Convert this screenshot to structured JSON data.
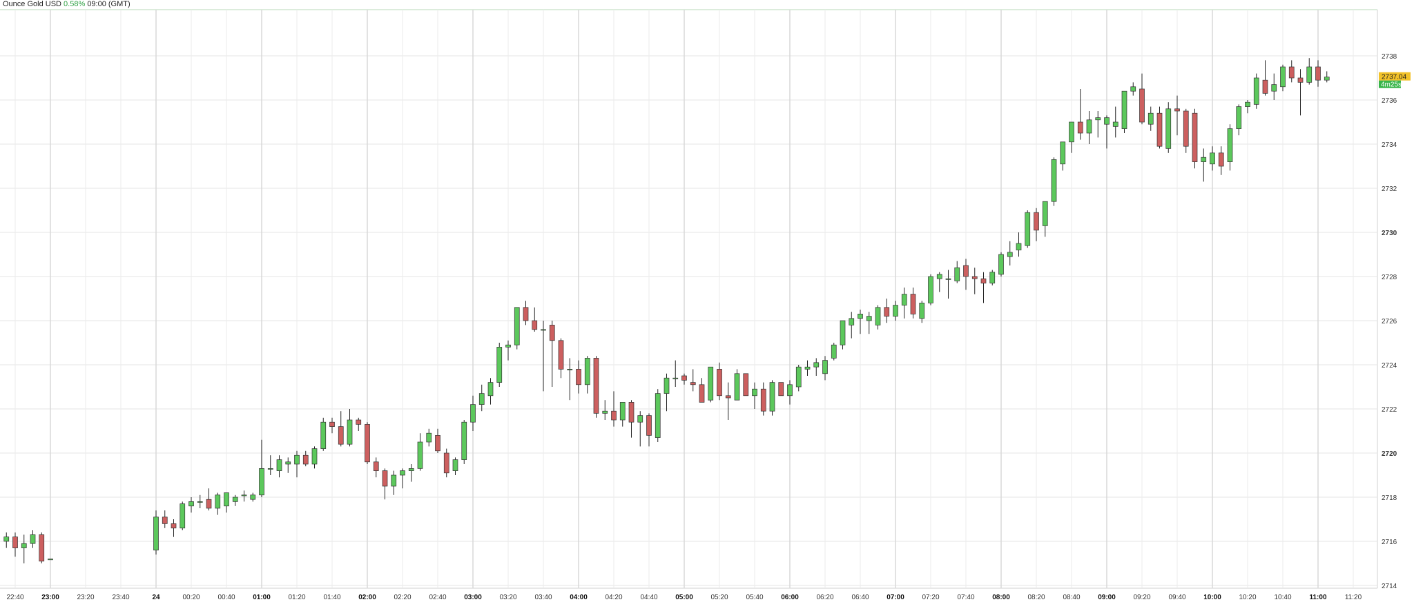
{
  "header": {
    "symbol": "Ounce Gold USD",
    "change": "0.58%",
    "timeframe": "09:00 (GMT)"
  },
  "price_label": {
    "value": "2737.04",
    "countdown": "4m25s"
  },
  "colors": {
    "up": "#5cc85c",
    "down": "#cc5f5f",
    "wick": "#222222",
    "grid": "#e6e6e6",
    "tag": "#f2c229",
    "timer": "#39b54a"
  },
  "chart_data": {
    "type": "candlestick",
    "ylim": [
      2713.5,
      2739.8
    ],
    "y_ticks": [
      "2714",
      "2716",
      "2718",
      "2720",
      "2722",
      "2724",
      "2726",
      "2728",
      "2730",
      "2732",
      "2734",
      "2736",
      "2738"
    ],
    "y_bold_ticks": [
      "2720",
      "2730"
    ],
    "x_labels": [
      "22:40",
      "23:00",
      "23:20",
      "23:40",
      "24",
      "00:20",
      "00:40",
      "01:00",
      "01:20",
      "01:40",
      "02:00",
      "02:20",
      "02:40",
      "03:00",
      "03:20",
      "03:40",
      "04:00",
      "04:20",
      "04:40",
      "05:00",
      "05:20",
      "05:40",
      "06:00",
      "06:20",
      "06:40",
      "07:00",
      "07:20",
      "07:40",
      "08:00",
      "08:20",
      "08:40",
      "09:00",
      "09:20",
      "09:40",
      "10:00",
      "10:20",
      "10:40",
      "11:00",
      "11:20"
    ],
    "x_bold_labels": [
      "23:00",
      "24",
      "01:00",
      "02:00",
      "03:00",
      "04:00",
      "05:00",
      "06:00",
      "07:00",
      "08:00",
      "09:00",
      "10:00",
      "11:00"
    ],
    "candles": [
      {
        "t": "22:35",
        "o": 2716.0,
        "h": 2716.4,
        "l": 2715.7,
        "c": 2716.2
      },
      {
        "t": "22:40",
        "o": 2716.2,
        "h": 2716.4,
        "l": 2715.3,
        "c": 2715.7
      },
      {
        "t": "22:45",
        "o": 2715.7,
        "h": 2716.3,
        "l": 2715.0,
        "c": 2715.9
      },
      {
        "t": "22:50",
        "o": 2715.9,
        "h": 2716.5,
        "l": 2715.7,
        "c": 2716.3
      },
      {
        "t": "22:55",
        "o": 2716.3,
        "h": 2716.4,
        "l": 2715.0,
        "c": 2715.1
      },
      {
        "t": "23:00",
        "o": 2715.2,
        "h": 2715.2,
        "l": 2715.2,
        "c": 2715.2
      },
      {
        "t": "00:00",
        "o": 2715.6,
        "h": 2717.4,
        "l": 2715.4,
        "c": 2717.1
      },
      {
        "t": "00:05",
        "o": 2717.1,
        "h": 2717.4,
        "l": 2716.6,
        "c": 2716.8
      },
      {
        "t": "00:10",
        "o": 2716.8,
        "h": 2717.0,
        "l": 2716.2,
        "c": 2716.6
      },
      {
        "t": "00:15",
        "o": 2716.6,
        "h": 2717.8,
        "l": 2716.5,
        "c": 2717.7
      },
      {
        "t": "00:20",
        "o": 2717.6,
        "h": 2718.0,
        "l": 2717.3,
        "c": 2717.8
      },
      {
        "t": "00:25",
        "o": 2717.8,
        "h": 2718.1,
        "l": 2717.5,
        "c": 2717.8
      },
      {
        "t": "00:30",
        "o": 2717.9,
        "h": 2718.4,
        "l": 2717.4,
        "c": 2717.5
      },
      {
        "t": "00:35",
        "o": 2717.5,
        "h": 2718.2,
        "l": 2717.2,
        "c": 2718.1
      },
      {
        "t": "00:40",
        "o": 2717.6,
        "h": 2718.2,
        "l": 2717.3,
        "c": 2718.2
      },
      {
        "t": "00:45",
        "o": 2717.8,
        "h": 2718.1,
        "l": 2717.6,
        "c": 2718.0
      },
      {
        "t": "00:50",
        "o": 2718.1,
        "h": 2718.3,
        "l": 2717.8,
        "c": 2718.1
      },
      {
        "t": "00:55",
        "o": 2717.9,
        "h": 2718.2,
        "l": 2717.8,
        "c": 2718.1
      },
      {
        "t": "01:00",
        "o": 2718.1,
        "h": 2720.6,
        "l": 2718.0,
        "c": 2719.3
      },
      {
        "t": "01:05",
        "o": 2719.3,
        "h": 2719.9,
        "l": 2719.0,
        "c": 2719.3
      },
      {
        "t": "01:10",
        "o": 2719.2,
        "h": 2719.9,
        "l": 2718.9,
        "c": 2719.7
      },
      {
        "t": "01:15",
        "o": 2719.5,
        "h": 2719.8,
        "l": 2719.1,
        "c": 2719.6
      },
      {
        "t": "01:20",
        "o": 2719.5,
        "h": 2720.1,
        "l": 2718.9,
        "c": 2719.9
      },
      {
        "t": "01:25",
        "o": 2719.9,
        "h": 2720.1,
        "l": 2719.4,
        "c": 2719.5
      },
      {
        "t": "01:30",
        "o": 2719.5,
        "h": 2720.3,
        "l": 2719.3,
        "c": 2720.2
      },
      {
        "t": "01:35",
        "o": 2720.2,
        "h": 2721.6,
        "l": 2720.1,
        "c": 2721.4
      },
      {
        "t": "01:40",
        "o": 2721.4,
        "h": 2721.6,
        "l": 2720.9,
        "c": 2721.2
      },
      {
        "t": "01:45",
        "o": 2721.2,
        "h": 2721.9,
        "l": 2720.3,
        "c": 2720.4
      },
      {
        "t": "01:50",
        "o": 2720.4,
        "h": 2722.0,
        "l": 2720.3,
        "c": 2721.5
      },
      {
        "t": "01:55",
        "o": 2721.5,
        "h": 2721.6,
        "l": 2721.0,
        "c": 2721.3
      },
      {
        "t": "02:00",
        "o": 2721.3,
        "h": 2721.4,
        "l": 2719.5,
        "c": 2719.6
      },
      {
        "t": "02:05",
        "o": 2719.6,
        "h": 2719.8,
        "l": 2718.9,
        "c": 2719.2
      },
      {
        "t": "02:10",
        "o": 2719.2,
        "h": 2719.3,
        "l": 2717.9,
        "c": 2718.5
      },
      {
        "t": "02:15",
        "o": 2718.5,
        "h": 2719.2,
        "l": 2718.1,
        "c": 2719.0
      },
      {
        "t": "02:20",
        "o": 2719.0,
        "h": 2719.3,
        "l": 2718.4,
        "c": 2719.2
      },
      {
        "t": "02:25",
        "o": 2719.2,
        "h": 2719.5,
        "l": 2718.7,
        "c": 2719.3
      },
      {
        "t": "02:30",
        "o": 2719.3,
        "h": 2720.9,
        "l": 2719.2,
        "c": 2720.5
      },
      {
        "t": "02:35",
        "o": 2720.5,
        "h": 2721.1,
        "l": 2720.3,
        "c": 2720.9
      },
      {
        "t": "02:40",
        "o": 2720.8,
        "h": 2721.1,
        "l": 2720.0,
        "c": 2720.1
      },
      {
        "t": "02:45",
        "o": 2720.0,
        "h": 2720.2,
        "l": 2718.9,
        "c": 2719.1
      },
      {
        "t": "02:50",
        "o": 2719.2,
        "h": 2719.8,
        "l": 2719.0,
        "c": 2719.7
      },
      {
        "t": "02:55",
        "o": 2719.7,
        "h": 2721.5,
        "l": 2719.5,
        "c": 2721.4
      },
      {
        "t": "03:00",
        "o": 2721.4,
        "h": 2722.6,
        "l": 2721.0,
        "c": 2722.2
      },
      {
        "t": "03:05",
        "o": 2722.2,
        "h": 2723.1,
        "l": 2721.9,
        "c": 2722.7
      },
      {
        "t": "03:10",
        "o": 2722.6,
        "h": 2723.4,
        "l": 2722.2,
        "c": 2723.2
      },
      {
        "t": "03:15",
        "o": 2723.2,
        "h": 2725.0,
        "l": 2723.0,
        "c": 2724.8
      },
      {
        "t": "03:20",
        "o": 2724.8,
        "h": 2725.1,
        "l": 2724.2,
        "c": 2724.9
      },
      {
        "t": "03:25",
        "o": 2724.9,
        "h": 2726.5,
        "l": 2724.7,
        "c": 2726.6
      },
      {
        "t": "03:30",
        "o": 2726.6,
        "h": 2726.9,
        "l": 2725.8,
        "c": 2726.0
      },
      {
        "t": "03:35",
        "o": 2726.0,
        "h": 2726.6,
        "l": 2725.5,
        "c": 2725.6
      },
      {
        "t": "03:40",
        "o": 2725.6,
        "h": 2726.0,
        "l": 2722.8,
        "c": 2725.6
      },
      {
        "t": "03:45",
        "o": 2725.8,
        "h": 2726.0,
        "l": 2723.0,
        "c": 2725.1
      },
      {
        "t": "03:50",
        "o": 2725.1,
        "h": 2725.2,
        "l": 2723.4,
        "c": 2723.8
      },
      {
        "t": "03:55",
        "o": 2723.8,
        "h": 2724.3,
        "l": 2722.4,
        "c": 2723.8
      },
      {
        "t": "04:00",
        "o": 2723.8,
        "h": 2724.2,
        "l": 2722.7,
        "c": 2723.1
      },
      {
        "t": "04:05",
        "o": 2723.1,
        "h": 2724.4,
        "l": 2722.7,
        "c": 2724.3
      },
      {
        "t": "04:10",
        "o": 2724.3,
        "h": 2724.4,
        "l": 2721.6,
        "c": 2721.8
      },
      {
        "t": "04:15",
        "o": 2721.8,
        "h": 2722.4,
        "l": 2721.5,
        "c": 2721.9
      },
      {
        "t": "04:20",
        "o": 2721.9,
        "h": 2722.8,
        "l": 2721.2,
        "c": 2721.5
      },
      {
        "t": "04:25",
        "o": 2721.5,
        "h": 2722.3,
        "l": 2721.2,
        "c": 2722.3
      },
      {
        "t": "04:30",
        "o": 2722.3,
        "h": 2722.4,
        "l": 2720.7,
        "c": 2721.4
      },
      {
        "t": "04:35",
        "o": 2721.4,
        "h": 2721.9,
        "l": 2720.3,
        "c": 2721.7
      },
      {
        "t": "04:40",
        "o": 2721.7,
        "h": 2721.8,
        "l": 2720.3,
        "c": 2720.8
      },
      {
        "t": "04:45",
        "o": 2720.7,
        "h": 2722.9,
        "l": 2720.5,
        "c": 2722.7
      },
      {
        "t": "04:50",
        "o": 2722.7,
        "h": 2723.6,
        "l": 2721.9,
        "c": 2723.4
      },
      {
        "t": "04:55",
        "o": 2723.4,
        "h": 2724.2,
        "l": 2723.0,
        "c": 2723.4
      },
      {
        "t": "05:00",
        "o": 2723.5,
        "h": 2723.6,
        "l": 2723.1,
        "c": 2723.3
      },
      {
        "t": "05:05",
        "o": 2723.2,
        "h": 2723.8,
        "l": 2722.8,
        "c": 2723.1
      },
      {
        "t": "05:10",
        "o": 2723.1,
        "h": 2723.4,
        "l": 2722.4,
        "c": 2722.3
      },
      {
        "t": "05:15",
        "o": 2722.4,
        "h": 2723.9,
        "l": 2722.3,
        "c": 2723.9
      },
      {
        "t": "05:20",
        "o": 2723.8,
        "h": 2724.1,
        "l": 2722.4,
        "c": 2722.6
      },
      {
        "t": "05:25",
        "o": 2722.6,
        "h": 2723.2,
        "l": 2721.5,
        "c": 2722.5
      },
      {
        "t": "05:30",
        "o": 2722.4,
        "h": 2723.8,
        "l": 2722.4,
        "c": 2723.6
      },
      {
        "t": "05:35",
        "o": 2723.6,
        "h": 2723.6,
        "l": 2722.6,
        "c": 2722.6
      },
      {
        "t": "05:40",
        "o": 2722.6,
        "h": 2723.2,
        "l": 2722.0,
        "c": 2722.9
      },
      {
        "t": "05:45",
        "o": 2722.9,
        "h": 2723.2,
        "l": 2721.7,
        "c": 2721.9
      },
      {
        "t": "05:50",
        "o": 2721.9,
        "h": 2723.3,
        "l": 2721.7,
        "c": 2723.2
      },
      {
        "t": "05:55",
        "o": 2723.2,
        "h": 2723.2,
        "l": 2722.6,
        "c": 2722.6
      },
      {
        "t": "06:00",
        "o": 2722.6,
        "h": 2723.3,
        "l": 2722.2,
        "c": 2723.1
      },
      {
        "t": "06:05",
        "o": 2723.0,
        "h": 2724.0,
        "l": 2722.8,
        "c": 2723.9
      },
      {
        "t": "06:10",
        "o": 2723.8,
        "h": 2724.2,
        "l": 2723.5,
        "c": 2723.9
      },
      {
        "t": "06:15",
        "o": 2723.9,
        "h": 2724.3,
        "l": 2723.5,
        "c": 2724.1
      },
      {
        "t": "06:20",
        "o": 2723.6,
        "h": 2724.4,
        "l": 2723.3,
        "c": 2724.2
      },
      {
        "t": "06:25",
        "o": 2724.3,
        "h": 2725.0,
        "l": 2724.2,
        "c": 2724.9
      },
      {
        "t": "06:30",
        "o": 2724.9,
        "h": 2726.0,
        "l": 2724.7,
        "c": 2726.0
      },
      {
        "t": "06:35",
        "o": 2725.8,
        "h": 2726.4,
        "l": 2725.2,
        "c": 2726.1
      },
      {
        "t": "06:40",
        "o": 2726.1,
        "h": 2726.5,
        "l": 2725.4,
        "c": 2726.3
      },
      {
        "t": "06:45",
        "o": 2726.0,
        "h": 2726.4,
        "l": 2725.4,
        "c": 2726.2
      },
      {
        "t": "06:50",
        "o": 2725.8,
        "h": 2726.7,
        "l": 2725.6,
        "c": 2726.6
      },
      {
        "t": "06:55",
        "o": 2726.6,
        "h": 2727.0,
        "l": 2725.9,
        "c": 2726.2
      },
      {
        "t": "07:00",
        "o": 2726.2,
        "h": 2726.9,
        "l": 2726.0,
        "c": 2726.7
      },
      {
        "t": "07:05",
        "o": 2726.7,
        "h": 2727.5,
        "l": 2726.1,
        "c": 2727.2
      },
      {
        "t": "07:10",
        "o": 2727.2,
        "h": 2727.5,
        "l": 2726.1,
        "c": 2726.3
      },
      {
        "t": "07:15",
        "o": 2726.1,
        "h": 2726.9,
        "l": 2725.9,
        "c": 2726.8
      },
      {
        "t": "07:20",
        "o": 2726.8,
        "h": 2728.1,
        "l": 2726.7,
        "c": 2728.0
      },
      {
        "t": "07:25",
        "o": 2727.9,
        "h": 2728.2,
        "l": 2727.3,
        "c": 2728.1
      },
      {
        "t": "07:30",
        "o": 2727.9,
        "h": 2728.3,
        "l": 2727.0,
        "c": 2727.9
      },
      {
        "t": "07:35",
        "o": 2727.8,
        "h": 2728.7,
        "l": 2727.7,
        "c": 2728.4
      },
      {
        "t": "07:40",
        "o": 2728.5,
        "h": 2728.8,
        "l": 2727.4,
        "c": 2728.0
      },
      {
        "t": "07:45",
        "o": 2728.0,
        "h": 2728.4,
        "l": 2727.2,
        "c": 2727.9
      },
      {
        "t": "07:50",
        "o": 2727.9,
        "h": 2728.2,
        "l": 2726.8,
        "c": 2727.7
      },
      {
        "t": "07:55",
        "o": 2727.7,
        "h": 2728.3,
        "l": 2727.6,
        "c": 2728.2
      },
      {
        "t": "08:00",
        "o": 2728.1,
        "h": 2729.1,
        "l": 2728.0,
        "c": 2729.0
      },
      {
        "t": "08:05",
        "o": 2728.9,
        "h": 2729.6,
        "l": 2728.5,
        "c": 2729.1
      },
      {
        "t": "08:10",
        "o": 2729.2,
        "h": 2730.0,
        "l": 2728.9,
        "c": 2729.5
      },
      {
        "t": "08:15",
        "o": 2729.4,
        "h": 2731.0,
        "l": 2729.3,
        "c": 2730.9
      },
      {
        "t": "08:20",
        "o": 2730.9,
        "h": 2731.1,
        "l": 2729.6,
        "c": 2730.1
      },
      {
        "t": "08:25",
        "o": 2730.3,
        "h": 2731.4,
        "l": 2729.8,
        "c": 2731.4
      },
      {
        "t": "08:30",
        "o": 2731.4,
        "h": 2733.4,
        "l": 2731.2,
        "c": 2733.3
      },
      {
        "t": "08:35",
        "o": 2733.1,
        "h": 2734.1,
        "l": 2732.8,
        "c": 2734.1
      },
      {
        "t": "08:40",
        "o": 2734.1,
        "h": 2735.0,
        "l": 2733.6,
        "c": 2735.0
      },
      {
        "t": "08:45",
        "o": 2735.0,
        "h": 2736.5,
        "l": 2734.2,
        "c": 2734.5
      },
      {
        "t": "08:50",
        "o": 2734.5,
        "h": 2735.5,
        "l": 2734.0,
        "c": 2735.1
      },
      {
        "t": "08:55",
        "o": 2735.1,
        "h": 2735.5,
        "l": 2734.3,
        "c": 2735.2
      },
      {
        "t": "09:00",
        "o": 2734.9,
        "h": 2735.3,
        "l": 2733.8,
        "c": 2735.2
      },
      {
        "t": "09:05",
        "o": 2734.8,
        "h": 2735.7,
        "l": 2734.3,
        "c": 2735.0
      },
      {
        "t": "09:10",
        "o": 2734.7,
        "h": 2736.4,
        "l": 2734.5,
        "c": 2736.4
      },
      {
        "t": "09:15",
        "o": 2736.4,
        "h": 2736.8,
        "l": 2736.2,
        "c": 2736.6
      },
      {
        "t": "09:20",
        "o": 2736.5,
        "h": 2737.2,
        "l": 2734.9,
        "c": 2735.0
      },
      {
        "t": "09:25",
        "o": 2734.9,
        "h": 2735.7,
        "l": 2734.6,
        "c": 2735.4
      },
      {
        "t": "09:30",
        "o": 2735.4,
        "h": 2735.7,
        "l": 2733.8,
        "c": 2733.9
      },
      {
        "t": "09:35",
        "o": 2733.8,
        "h": 2735.9,
        "l": 2733.6,
        "c": 2735.6
      },
      {
        "t": "09:40",
        "o": 2735.6,
        "h": 2736.2,
        "l": 2734.4,
        "c": 2735.5
      },
      {
        "t": "09:45",
        "o": 2735.5,
        "h": 2735.6,
        "l": 2733.6,
        "c": 2733.9
      },
      {
        "t": "09:50",
        "o": 2735.4,
        "h": 2735.6,
        "l": 2732.9,
        "c": 2733.2
      },
      {
        "t": "09:55",
        "o": 2733.2,
        "h": 2733.8,
        "l": 2732.3,
        "c": 2733.4
      },
      {
        "t": "10:00",
        "o": 2733.1,
        "h": 2733.9,
        "l": 2732.8,
        "c": 2733.6
      },
      {
        "t": "10:05",
        "o": 2733.6,
        "h": 2733.9,
        "l": 2732.6,
        "c": 2733.0
      },
      {
        "t": "10:10",
        "o": 2733.2,
        "h": 2734.9,
        "l": 2732.8,
        "c": 2734.7
      },
      {
        "t": "10:15",
        "o": 2734.7,
        "h": 2735.8,
        "l": 2734.4,
        "c": 2735.7
      },
      {
        "t": "10:20",
        "o": 2735.7,
        "h": 2736.0,
        "l": 2735.4,
        "c": 2735.9
      },
      {
        "t": "10:25",
        "o": 2735.8,
        "h": 2737.2,
        "l": 2735.6,
        "c": 2737.0
      },
      {
        "t": "10:30",
        "o": 2736.9,
        "h": 2737.8,
        "l": 2736.2,
        "c": 2736.3
      },
      {
        "t": "10:35",
        "o": 2736.4,
        "h": 2737.2,
        "l": 2736.0,
        "c": 2736.7
      },
      {
        "t": "10:40",
        "o": 2736.6,
        "h": 2737.6,
        "l": 2736.4,
        "c": 2737.5
      },
      {
        "t": "10:45",
        "o": 2737.5,
        "h": 2737.8,
        "l": 2736.8,
        "c": 2737.0
      },
      {
        "t": "10:50",
        "o": 2737.0,
        "h": 2737.4,
        "l": 2735.3,
        "c": 2736.8
      },
      {
        "t": "10:55",
        "o": 2736.8,
        "h": 2737.9,
        "l": 2736.7,
        "c": 2737.5
      },
      {
        "t": "11:00",
        "o": 2737.5,
        "h": 2737.8,
        "l": 2736.6,
        "c": 2736.9
      },
      {
        "t": "11:05",
        "o": 2736.9,
        "h": 2737.3,
        "l": 2736.8,
        "c": 2737.04
      }
    ]
  }
}
